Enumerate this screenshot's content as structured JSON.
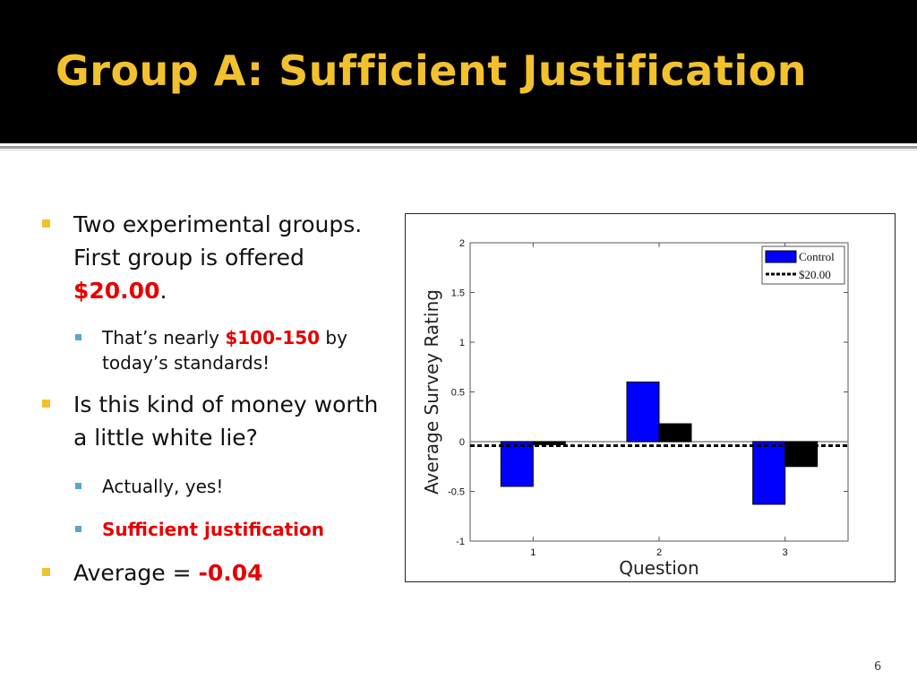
{
  "slide": {
    "title": "Group A: Sufficient Justification",
    "page_number": "6"
  },
  "bullets": {
    "b1": {
      "text": "Two experimental groups. First group is offered ",
      "highlight": "$20.00",
      "suffix": "."
    },
    "b2": {
      "text": "That’s nearly ",
      "highlight": "$100-150",
      "suffix": " by today’s standards!"
    },
    "b3": {
      "text": "Is this kind of money worth a little white lie?"
    },
    "b4": {
      "text": "Actually, yes!"
    },
    "b5": {
      "highlight": "Sufficient justification"
    },
    "b6": {
      "text": "Average = ",
      "highlight": "-0.04"
    }
  },
  "colors": {
    "title": "#f2c12e",
    "highlight": "#e60000",
    "control_bar": "#0000ff",
    "treatment_bar": "#000000"
  },
  "chart_data": {
    "type": "bar",
    "categories": [
      "1",
      "2",
      "3"
    ],
    "series": [
      {
        "name": "Control",
        "values": [
          -0.45,
          0.6,
          -0.63
        ],
        "color": "#0000ff"
      },
      {
        "name": "$20.00",
        "values": [
          -0.03,
          0.18,
          -0.25
        ],
        "color": "#000000"
      }
    ],
    "reference_line": {
      "name": "$20.00",
      "value": -0.04,
      "style": "dashed"
    },
    "xlabel": "Question",
    "ylabel": "Average Survey Rating",
    "ylim": [
      -1,
      2
    ],
    "yticks": [
      "-1",
      "-0.5",
      "0",
      "0.5",
      "1",
      "1.5",
      "2"
    ],
    "legend": [
      "Control",
      "$20.00"
    ],
    "legend_position": "top-right",
    "grid": false
  }
}
